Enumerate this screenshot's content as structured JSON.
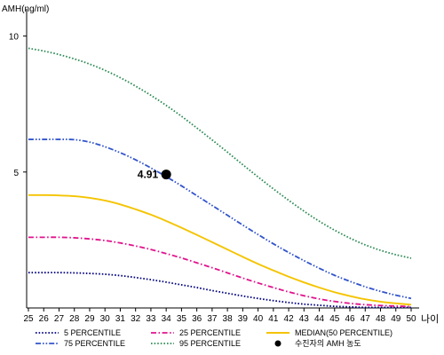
{
  "chart_data": {
    "type": "line",
    "ylabel": "AMH(ng/ml)",
    "xlabel": "나이",
    "x": [
      25,
      26,
      27,
      28,
      29,
      30,
      31,
      32,
      33,
      34,
      35,
      36,
      37,
      38,
      39,
      40,
      41,
      42,
      43,
      44,
      45,
      46,
      47,
      48,
      49,
      50
    ],
    "ylim": [
      0,
      11
    ],
    "yticks": [
      5,
      10
    ],
    "grid": false,
    "legend_position": "bottom",
    "series": [
      {
        "name": "5 PERCENTILE",
        "color": "#000080",
        "dash": "dotted",
        "values": [
          1.3,
          1.3,
          1.3,
          1.29,
          1.27,
          1.24,
          1.19,
          1.12,
          1.04,
          0.95,
          0.85,
          0.75,
          0.64,
          0.54,
          0.44,
          0.35,
          0.27,
          0.2,
          0.14,
          0.1,
          0.06,
          0.04,
          0.02,
          0.02,
          0.02,
          0.02
        ]
      },
      {
        "name": "25 PERCENTILE",
        "color": "#e0138c",
        "dash": "dash-dot",
        "values": [
          2.6,
          2.6,
          2.6,
          2.58,
          2.54,
          2.48,
          2.39,
          2.28,
          2.15,
          2.0,
          1.84,
          1.66,
          1.48,
          1.29,
          1.1,
          0.92,
          0.75,
          0.59,
          0.45,
          0.33,
          0.24,
          0.17,
          0.12,
          0.09,
          0.07,
          0.05
        ]
      },
      {
        "name": "MEDIAN(50 PERCENTILE)",
        "color": "#f5c400",
        "dash": "solid",
        "values": [
          4.15,
          4.15,
          4.14,
          4.11,
          4.05,
          3.95,
          3.81,
          3.63,
          3.43,
          3.2,
          2.95,
          2.69,
          2.42,
          2.15,
          1.88,
          1.62,
          1.38,
          1.15,
          0.94,
          0.75,
          0.58,
          0.44,
          0.32,
          0.23,
          0.17,
          0.12
        ]
      },
      {
        "name": "75 PERCENTILE",
        "color": "#3355cc",
        "dash": "dash-dot-dot",
        "values": [
          6.2,
          6.2,
          6.2,
          6.19,
          6.1,
          5.93,
          5.71,
          5.45,
          5.15,
          4.83,
          4.49,
          4.13,
          3.77,
          3.41,
          3.05,
          2.7,
          2.36,
          2.04,
          1.74,
          1.46,
          1.2,
          0.98,
          0.78,
          0.61,
          0.47,
          0.35
        ]
      },
      {
        "name": "95 PERCENTILE",
        "color": "#2e8b57",
        "dash": "dotted",
        "values": [
          9.55,
          9.45,
          9.32,
          9.16,
          8.97,
          8.74,
          8.47,
          8.16,
          7.82,
          7.45,
          7.05,
          6.62,
          6.18,
          5.73,
          5.27,
          4.82,
          4.38,
          3.96,
          3.56,
          3.19,
          2.86,
          2.57,
          2.32,
          2.12,
          1.96,
          1.83
        ]
      }
    ],
    "marker": {
      "label": "수진자의 AMH 농도",
      "x": 34,
      "y": 4.91,
      "value_label": "4.91"
    }
  }
}
